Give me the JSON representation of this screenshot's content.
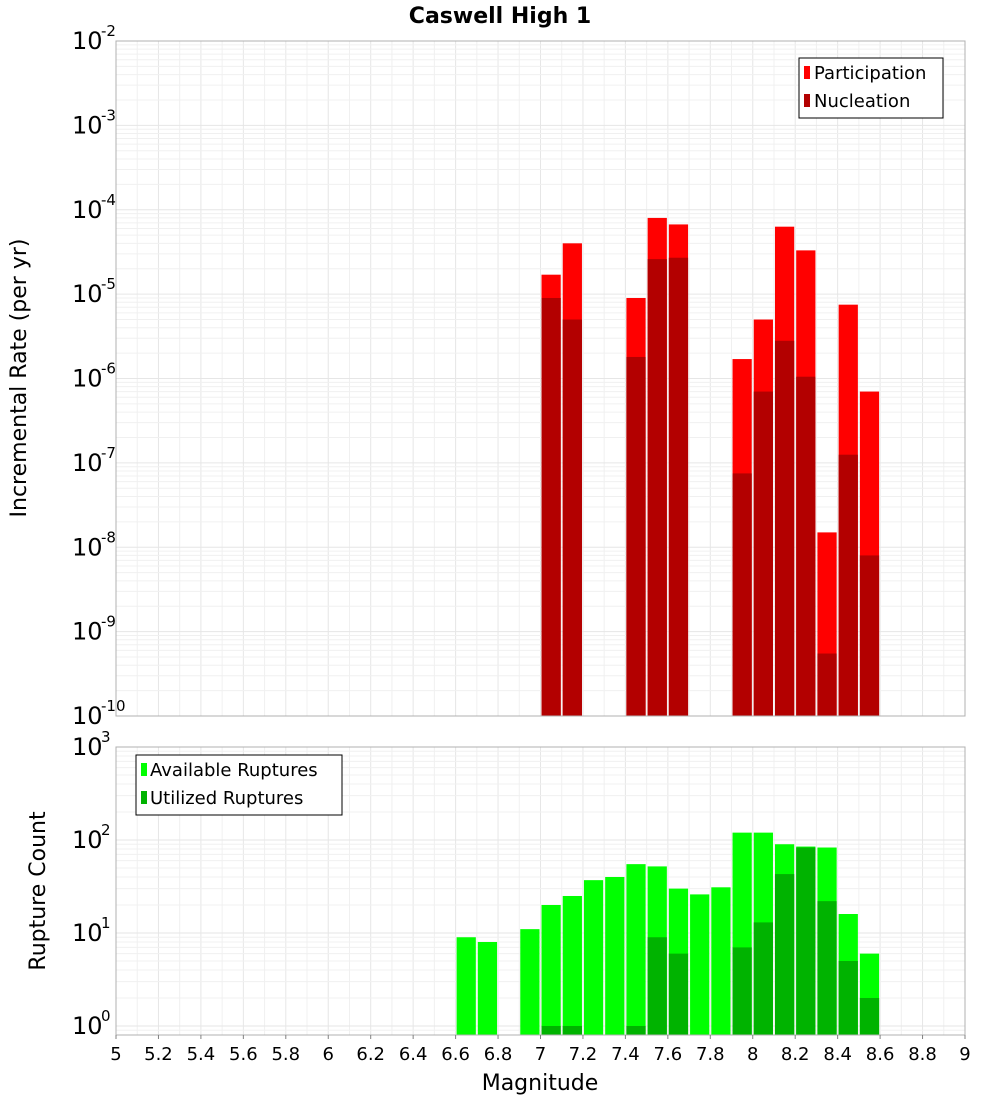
{
  "chart_data": [
    {
      "type": "bar",
      "title": "Caswell High 1",
      "xlabel": "",
      "ylabel": "Incremental Rate (per yr)",
      "xlim": [
        5,
        9
      ],
      "ylim": [
        1e-10,
        0.01
      ],
      "yscale": "log",
      "grid": true,
      "legend_position": "top-right",
      "bar_width": 0.1,
      "ytick_exponents": [
        -10,
        -9,
        -8,
        -7,
        -6,
        -5,
        -4,
        -3,
        -2
      ],
      "series": [
        {
          "name": "Participation",
          "color": "#ff0000",
          "x": [
            7.05,
            7.15,
            7.45,
            7.55,
            7.65,
            7.95,
            8.05,
            8.15,
            8.25,
            8.35,
            8.45,
            8.55
          ],
          "values": [
            1.7e-05,
            4e-05,
            9e-06,
            8e-05,
            6.7e-05,
            1.7e-06,
            5e-06,
            6.3e-05,
            3.3e-05,
            1.5e-08,
            7.5e-06,
            7e-07
          ]
        },
        {
          "name": "Nucleation",
          "color": "#b30000",
          "x": [
            7.05,
            7.15,
            7.45,
            7.55,
            7.65,
            7.95,
            8.05,
            8.15,
            8.25,
            8.35,
            8.45,
            8.55
          ],
          "values": [
            9e-06,
            5e-06,
            1.8e-06,
            2.6e-05,
            2.7e-05,
            7.5e-08,
            7e-07,
            2.8e-06,
            1.05e-06,
            5.5e-10,
            1.25e-07,
            8e-09
          ]
        }
      ]
    },
    {
      "type": "bar",
      "title": "",
      "xlabel": "Magnitude",
      "ylabel": "Rupture Count",
      "xlim": [
        5,
        9
      ],
      "ylim": [
        0.8,
        1000
      ],
      "yscale": "log",
      "grid": true,
      "legend_position": "top-left",
      "bar_width": 0.1,
      "ytick_exponents": [
        0,
        1,
        2,
        3
      ],
      "xticks": [
        "5",
        "5.2",
        "5.4",
        "5.6",
        "5.8",
        "6",
        "6.2",
        "6.4",
        "6.6",
        "6.8",
        "7",
        "7.2",
        "7.4",
        "7.6",
        "7.8",
        "8",
        "8.2",
        "8.4",
        "8.6",
        "8.8",
        "9"
      ],
      "series": [
        {
          "name": "Available Ruptures",
          "color": "#00ff00",
          "x": [
            6.65,
            6.75,
            6.95,
            7.05,
            7.15,
            7.25,
            7.35,
            7.45,
            7.55,
            7.65,
            7.75,
            7.85,
            7.95,
            8.05,
            8.15,
            8.25,
            8.35,
            8.45,
            8.55
          ],
          "values": [
            9,
            8,
            11,
            20,
            25,
            37,
            40,
            55,
            52,
            30,
            26,
            31,
            120,
            120,
            90,
            85,
            83,
            16,
            6
          ]
        },
        {
          "name": "Utilized Ruptures",
          "color": "#00b300",
          "x": [
            7.05,
            7.15,
            7.45,
            7.55,
            7.65,
            7.95,
            8.05,
            8.15,
            8.25,
            8.35,
            8.45,
            8.55
          ],
          "values": [
            1,
            1,
            1,
            9,
            6,
            7,
            13,
            43,
            83,
            22,
            5,
            2
          ]
        }
      ]
    }
  ]
}
